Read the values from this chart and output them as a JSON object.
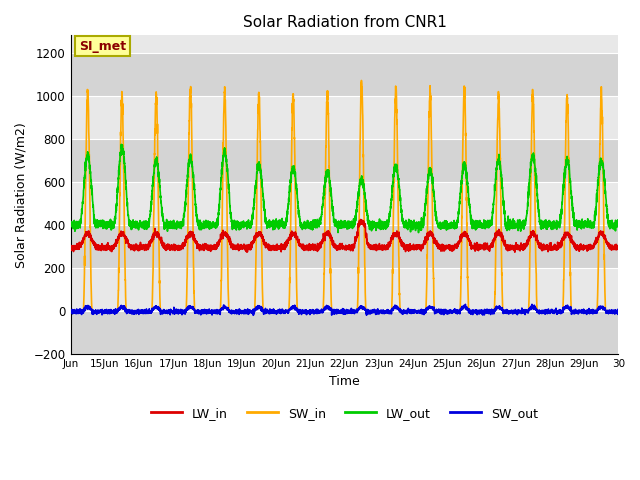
{
  "title": "Solar Radiation from CNR1",
  "xlabel": "Time",
  "ylabel": "Solar Radiation (W/m2)",
  "ylim": [
    -200,
    1280
  ],
  "yticks": [
    -200,
    0,
    200,
    400,
    600,
    800,
    1000,
    1200
  ],
  "x_start": 14.0,
  "x_end": 30.0,
  "xtick_positions": [
    14,
    15,
    16,
    17,
    18,
    19,
    20,
    21,
    22,
    23,
    24,
    25,
    26,
    27,
    28,
    29,
    30
  ],
  "xtick_labels": [
    "Jun",
    "15Jun",
    "16Jun",
    "17Jun",
    "18Jun",
    "19Jun",
    "20Jun",
    "21Jun",
    "22Jun",
    "23Jun",
    "24Jun",
    "25Jun",
    "26Jun",
    "27Jun",
    "28Jun",
    "29Jun",
    "30"
  ],
  "colors": {
    "LW_in": "#dd0000",
    "SW_in": "#ffaa00",
    "LW_out": "#00cc00",
    "SW_out": "#0000dd"
  },
  "legend_label": "SI_met",
  "line_width": 1.2,
  "band_colors": [
    "#d8d8d8",
    "#e8e8e8"
  ],
  "plot_bg": "#e8e8e8"
}
